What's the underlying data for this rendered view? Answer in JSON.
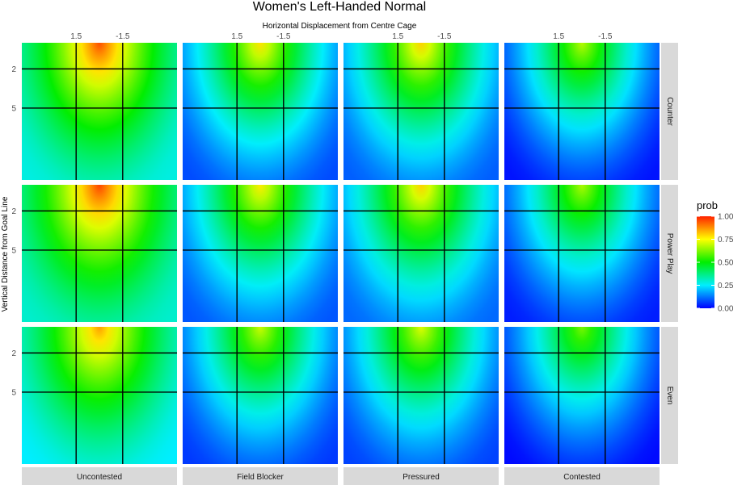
{
  "chart_data": {
    "type": "heatmap",
    "title": "Women's Left-Handed Normal",
    "xlabel": "Horizontal Displacement from Centre Cage",
    "ylabel": "Vertical Distance from Goal Line",
    "x_ticks": [
      "1.5",
      "-1.5"
    ],
    "x_tick_values": [
      1.5,
      -1.5
    ],
    "y_ticks": [
      "2",
      "5"
    ],
    "y_tick_values": [
      2,
      5
    ],
    "xlim": [
      5,
      -5
    ],
    "ylim": [
      0,
      10.5
    ],
    "columns": [
      "Uncontested",
      "Field Blocker",
      "Pressured",
      "Contested"
    ],
    "rows": [
      "Counter",
      "Power Play",
      "Even"
    ],
    "legend": {
      "title": "prob",
      "labels": [
        "1.00",
        "0.75",
        "0.50",
        "0.25",
        "0.00"
      ],
      "values": [
        1.0,
        0.75,
        0.5,
        0.25,
        0.0
      ],
      "position": "right"
    },
    "peak_x": 0,
    "peak_y": 0,
    "peak_prob": [
      [
        0.95,
        0.78,
        0.8,
        0.68
      ],
      [
        0.96,
        0.77,
        0.8,
        0.67
      ],
      [
        0.86,
        0.7,
        0.72,
        0.62
      ]
    ],
    "floor_prob": [
      [
        0.28,
        0.08,
        0.1,
        0.02
      ],
      [
        0.3,
        0.09,
        0.11,
        0.03
      ],
      [
        0.25,
        0.06,
        0.07,
        0.01
      ]
    ]
  }
}
